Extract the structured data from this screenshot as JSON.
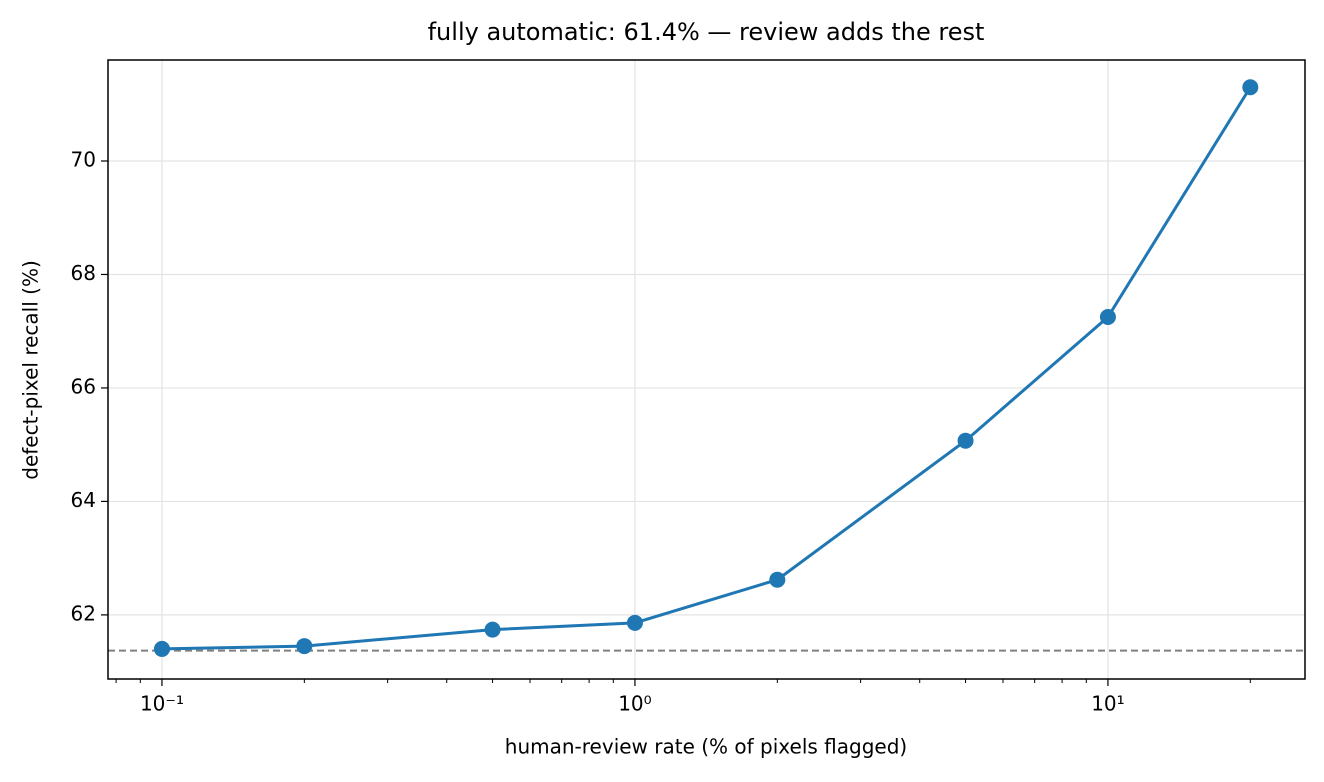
{
  "chart_data": {
    "type": "line",
    "title": "fully automatic: 61.4% — review adds the rest",
    "xlabel": "human-review rate (% of pixels flagged)",
    "ylabel": "defect-pixel recall (%)",
    "x": [
      0.1,
      0.2,
      0.5,
      1,
      2,
      5,
      10,
      20
    ],
    "series": [
      {
        "color": "#1f77b4",
        "values": [
          61.4,
          61.45,
          61.74,
          61.86,
          62.62,
          65.07,
          67.25,
          71.3
        ]
      }
    ],
    "baseline": 61.37,
    "baseline_color": "#808080",
    "xscale": "log",
    "xlim": [
      0.0769,
      26.1
    ],
    "ylim": [
      60.87,
      71.78
    ],
    "xticks": [
      {
        "value": 0.1,
        "label": "10⁻¹"
      },
      {
        "value": 1,
        "label": "10⁰"
      },
      {
        "value": 10,
        "label": "10¹"
      }
    ],
    "xminorticks": [
      0.08,
      0.09,
      0.2,
      0.3,
      0.4,
      0.5,
      0.6,
      0.7,
      0.8,
      0.9,
      2,
      3,
      4,
      5,
      6,
      7,
      8,
      9,
      20
    ],
    "yticks": [
      62,
      64,
      66,
      68,
      70
    ],
    "grid": true
  }
}
